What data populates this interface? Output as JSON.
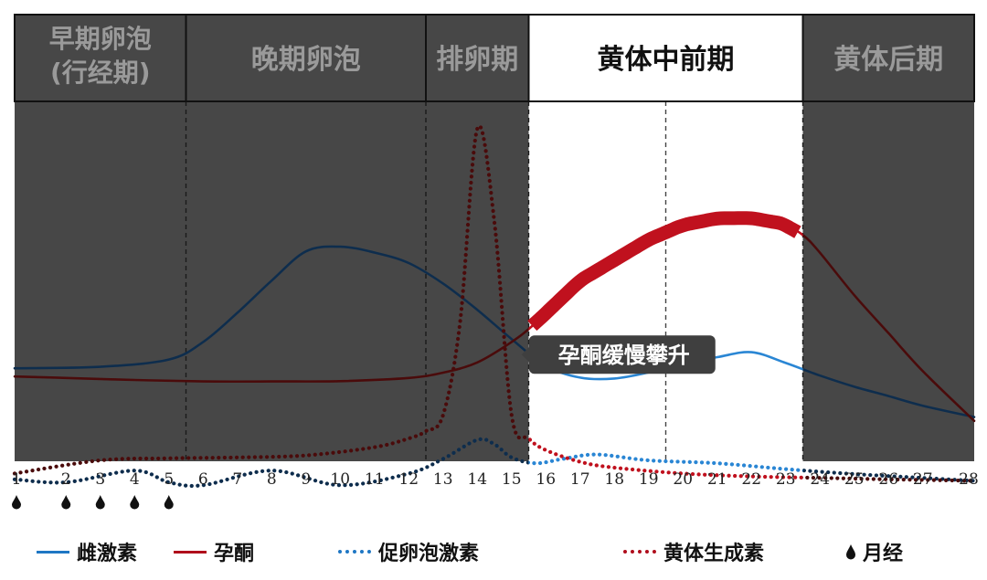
{
  "chart_data": {
    "type": "line",
    "x_ticks": [
      1,
      2,
      3,
      4,
      5,
      6,
      7,
      8,
      9,
      10,
      11,
      12,
      13,
      14,
      15,
      16,
      17,
      18,
      19,
      20,
      21,
      22,
      23,
      24,
      25,
      26,
      27,
      28
    ],
    "menstruation_days": [
      1,
      2,
      3,
      4,
      5
    ],
    "phases": [
      {
        "label_lines": [
          "早期卵泡",
          "(行经期)"
        ],
        "start": 0.5,
        "end": 5.5,
        "highlight": false
      },
      {
        "label_lines": [
          "晚期卵泡"
        ],
        "start": 5.5,
        "end": 12.5,
        "highlight": false
      },
      {
        "label_lines": [
          "排卵期"
        ],
        "start": 12.5,
        "end": 15.5,
        "highlight": false
      },
      {
        "label_lines": [
          "黄体中前期"
        ],
        "start": 15.5,
        "end": 23.5,
        "highlight": true
      },
      {
        "label_lines": [
          "黄体后期"
        ],
        "start": 23.5,
        "end": 28.5,
        "highlight": false
      }
    ],
    "divider_days": [
      5.5,
      12.5,
      15.5,
      19.5,
      23.5
    ],
    "series": [
      {
        "name": "雌激素",
        "style": "solid",
        "color": "#1f77c4",
        "x": [
          0.5,
          3,
          5,
          6,
          7,
          8,
          9,
          10,
          11,
          12,
          13,
          14,
          15,
          16,
          17,
          18,
          19,
          20,
          21,
          22,
          23,
          24,
          25,
          26,
          27,
          28.5
        ],
        "y": [
          24,
          24.5,
          27,
          33,
          43,
          54,
          64,
          65.6,
          63.6,
          60,
          53,
          44,
          34,
          24.8,
          20.8,
          20.5,
          22.6,
          25.7,
          27.8,
          29.5,
          25.8,
          21.5,
          17.7,
          14.5,
          11.2,
          7.3
        ]
      },
      {
        "name": "孕酮",
        "style": "solid",
        "color": "#8b1010",
        "x": [
          0.5,
          2,
          4,
          6,
          8,
          10,
          12,
          13,
          14,
          15,
          15.7,
          17,
          19,
          20,
          21,
          22,
          22.9,
          23.5,
          24,
          25,
          26,
          27,
          28.5
        ],
        "y": [
          21.2,
          20.7,
          20,
          19.5,
          19.5,
          19.6,
          20.7,
          22.5,
          26,
          33,
          39.5,
          54,
          68,
          73,
          75.3,
          75.4,
          73.5,
          69.6,
          63.5,
          49,
          36,
          23,
          6
        ]
      },
      {
        "name": "促卵泡激素",
        "style": "dotted",
        "color": "#1f77c4",
        "x": [
          0.5,
          2,
          4,
          5,
          6,
          8,
          10,
          12,
          13,
          14,
          14.5,
          15,
          15.7,
          16.5,
          17.5,
          19,
          21,
          23,
          25,
          27,
          28.5
        ],
        "y": [
          -14,
          -15,
          -11,
          -15,
          -16,
          -11,
          -16,
          -12,
          -7,
          -0.5,
          -2,
          -6.5,
          -8.5,
          -7,
          -5.5,
          -7.5,
          -8.5,
          -10.5,
          -12.2,
          -13.5,
          -14.5
        ]
      },
      {
        "name": "黄体生成素",
        "style": "dotted",
        "color": "#8b1010",
        "x": [
          0.5,
          3,
          5,
          7,
          9,
          11,
          12,
          12.5,
          13,
          13.5,
          14,
          14.5,
          15,
          15.5,
          16,
          17,
          18,
          20,
          22,
          24,
          26,
          28.5
        ],
        "y": [
          -12,
          -7.5,
          -6.8,
          -6.5,
          -5.8,
          -3,
          0,
          2.5,
          8,
          40,
          106,
          74,
          8,
          0,
          -4,
          -8,
          -10,
          -12,
          -13,
          -13.5,
          -14,
          -14.5
        ]
      }
    ],
    "emphasis": {
      "series": "孕酮",
      "from": 15.6,
      "to": 23.5
    },
    "annotation": {
      "text": "孕酮缓慢攀升",
      "x": 18.6,
      "y": 29
    }
  },
  "legend": [
    {
      "label": "雌激素",
      "kind": "line",
      "style": "solid",
      "color": "#1f77c4"
    },
    {
      "label": "孕酮",
      "kind": "line",
      "style": "solid",
      "color": "#b00d1c"
    },
    {
      "label": "促卵泡激素",
      "kind": "line",
      "style": "dotted",
      "color": "#1f77c4"
    },
    {
      "label": "黄体生成素",
      "kind": "line",
      "style": "dotted",
      "color": "#b00d1c"
    },
    {
      "label": "月经",
      "kind": "drop",
      "color": "#111111"
    }
  ]
}
